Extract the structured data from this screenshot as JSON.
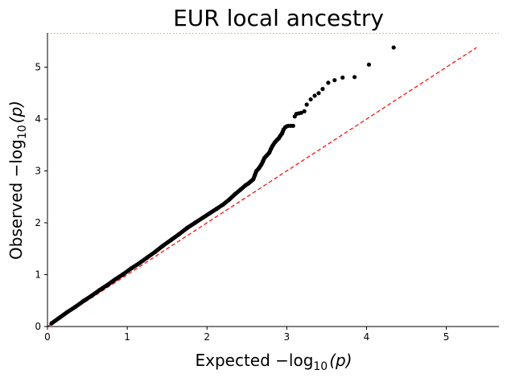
{
  "chart_data": {
    "type": "scatter",
    "title": "EUR local ancestry",
    "xlabel": {
      "prefix": "Expected −log",
      "sub": "10",
      "suffix": "(p)"
    },
    "ylabel": {
      "prefix": "Observed −log",
      "sub": "10",
      "suffix": "(p)"
    },
    "xlim": [
      0,
      5.66
    ],
    "ylim": [
      0,
      5.66
    ],
    "xticks": [
      0,
      1,
      2,
      3,
      4,
      5
    ],
    "yticks": [
      0,
      1,
      2,
      3,
      4,
      5
    ],
    "grid": false,
    "colors": {
      "points": "#000000",
      "reference_line": "#ff0000",
      "threshold_line": "#ffa500",
      "axes": "#000000"
    },
    "reference_line": {
      "style": "dashed",
      "from": [
        0,
        0
      ],
      "to": [
        5.38,
        5.38
      ]
    },
    "threshold_line": {
      "style": "dotted",
      "y": 5.66
    },
    "series": [
      {
        "marker": "point",
        "x": [
          0.05,
          0.15,
          0.25,
          0.35,
          0.45,
          0.55,
          0.65,
          0.75,
          0.85,
          0.95,
          1.05,
          1.15,
          1.25,
          1.35,
          1.45,
          1.55,
          1.65,
          1.75,
          1.85,
          1.95,
          2.05,
          2.12,
          2.2,
          2.28,
          2.35,
          2.42,
          2.48,
          2.52,
          2.55,
          2.58,
          2.6,
          2.62,
          2.65,
          2.68,
          2.7,
          2.72,
          2.75,
          2.78,
          2.8,
          2.82,
          2.85,
          2.88,
          2.9,
          2.92,
          2.94,
          2.96,
          2.98,
          3.0,
          3.02,
          3.05,
          3.08,
          3.1,
          3.12,
          3.15,
          3.18,
          3.22,
          3.25,
          3.3,
          3.35,
          3.4,
          3.45,
          3.52,
          3.6,
          3.7,
          3.85,
          4.03,
          4.34
        ],
        "y": [
          0.06,
          0.17,
          0.28,
          0.38,
          0.49,
          0.59,
          0.7,
          0.8,
          0.91,
          1.01,
          1.12,
          1.22,
          1.33,
          1.44,
          1.56,
          1.67,
          1.78,
          1.9,
          2.0,
          2.1,
          2.2,
          2.27,
          2.35,
          2.45,
          2.55,
          2.64,
          2.72,
          2.76,
          2.8,
          2.84,
          2.92,
          3.0,
          3.05,
          3.12,
          3.18,
          3.25,
          3.3,
          3.35,
          3.42,
          3.48,
          3.55,
          3.6,
          3.63,
          3.68,
          3.72,
          3.8,
          3.84,
          3.86,
          3.87,
          3.87,
          3.87,
          4.05,
          4.1,
          4.11,
          4.12,
          4.15,
          4.28,
          4.38,
          4.45,
          4.5,
          4.58,
          4.7,
          4.75,
          4.8,
          4.81,
          5.05,
          5.38
        ]
      }
    ]
  }
}
